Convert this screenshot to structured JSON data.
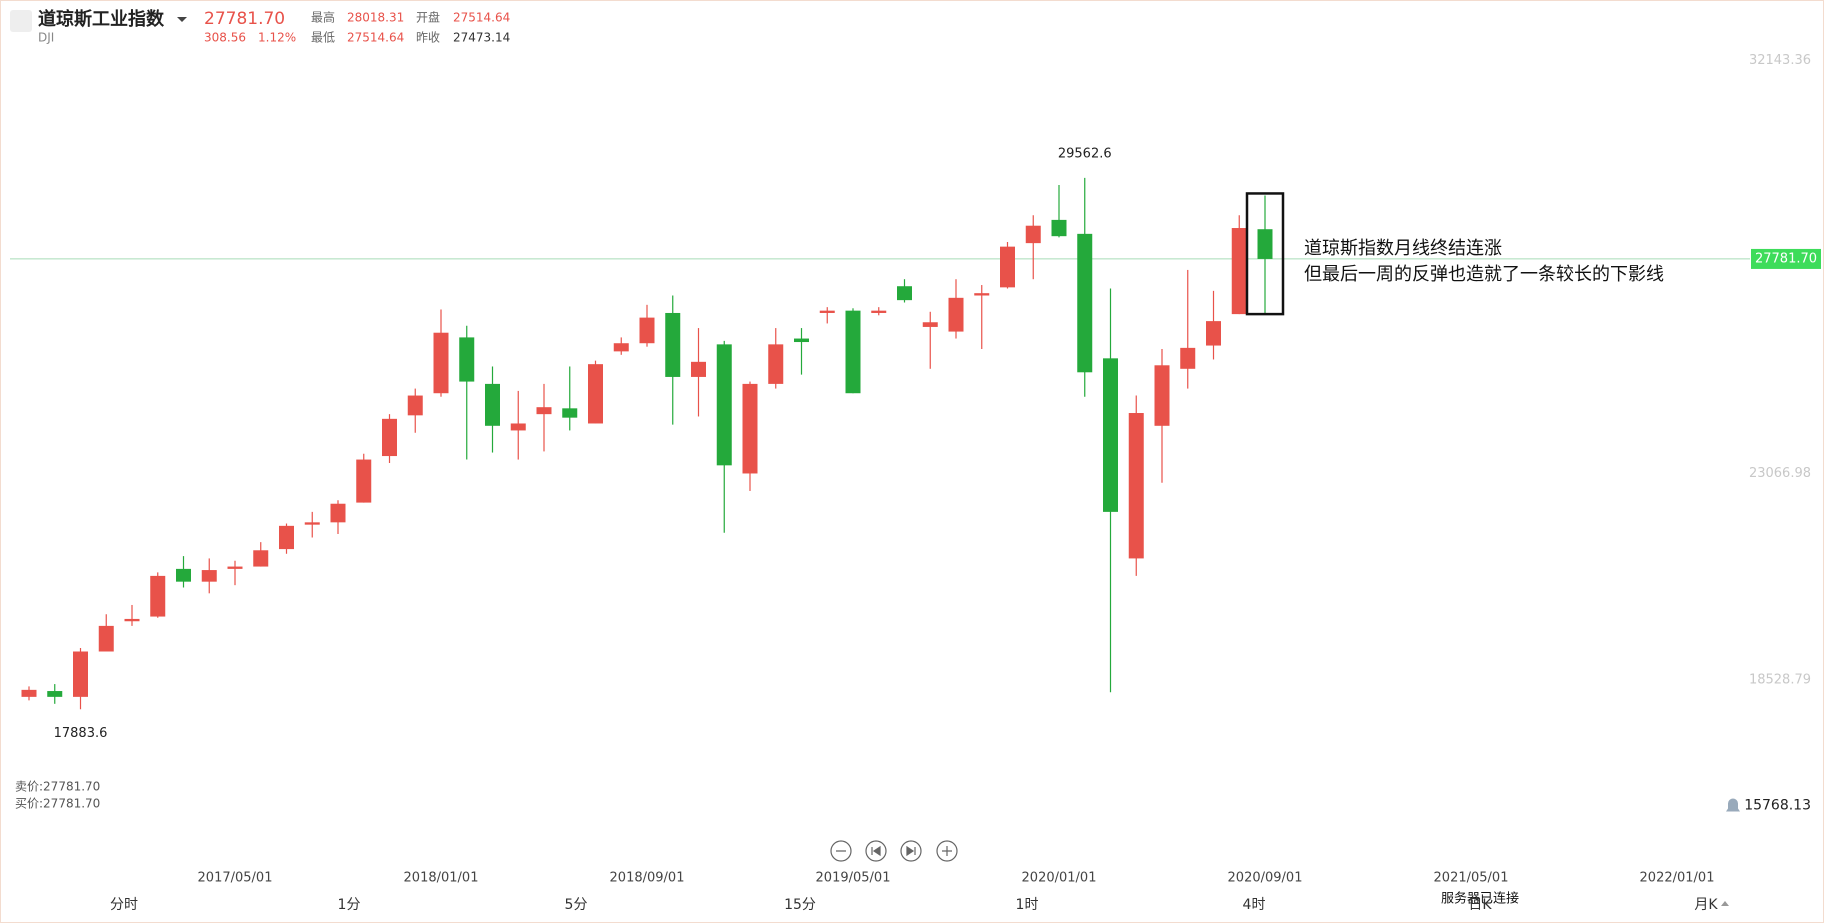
{
  "header": {
    "name": "道琼斯工业指数",
    "code": "DJI",
    "price": "27781.70",
    "change": "308.56",
    "change_pct": "1.12%",
    "high_label": "最高",
    "high": "28018.31",
    "open_label": "开盘",
    "open": "27514.64",
    "low_label": "最低",
    "low": "27514.64",
    "prev_close_label": "昨收",
    "prev_close": "27473.14"
  },
  "quotes": {
    "sell": "卖价:27781.70",
    "buy": "买价:27781.70"
  },
  "periods": [
    "分时",
    "1分",
    "5分",
    "15分",
    "1时",
    "4时",
    "日K",
    "月K"
  ],
  "status": "服务器已连接",
  "chart_data": {
    "type": "candlestick",
    "categories": [
      null,
      null,
      null,
      null,
      null,
      null,
      null,
      null,
      "2017/05/01",
      null,
      null,
      null,
      null,
      null,
      null,
      null,
      "2018/01/01",
      null,
      null,
      null,
      null,
      null,
      null,
      null,
      "2018/09/01",
      null,
      null,
      null,
      null,
      null,
      null,
      null,
      "2019/05/01",
      null,
      null,
      null,
      null,
      null,
      null,
      null,
      "2020/01/01",
      null,
      null,
      null,
      null,
      null,
      null,
      null,
      "2020/09/01",
      null,
      null,
      null,
      null,
      null,
      null,
      null,
      "2021/05/01",
      null,
      null,
      null,
      null,
      null,
      null,
      null,
      "2022/01/01"
    ],
    "open": [
      18156,
      18284,
      18156,
      19153,
      19818,
      19921,
      20969,
      20688,
      20969,
      21020,
      21404,
      21941,
      21992,
      22426,
      23449,
      24344,
      24830,
      26057,
      25035,
      24012,
      24370,
      24498,
      24165,
      25750,
      25929,
      26594,
      25188,
      25904,
      23066,
      25035,
      26032,
      26594,
      26645,
      26594,
      27182,
      26287,
      26185,
      26978,
      27157,
      28129,
      28640,
      28333,
      25597,
      21199,
      24114,
      25367,
      25878,
      26569,
      28435,
      null,
      null,
      null,
      null,
      null,
      null,
      null,
      null,
      null,
      null,
      null,
      null,
      null,
      null,
      null,
      null
    ],
    "high": [
      18386,
      18437,
      19230,
      19972,
      20176,
      20892,
      21250,
      21199,
      21148,
      21557,
      21966,
      22222,
      22478,
      23500,
      24370,
      24932,
      26671,
      26313,
      25418,
      24881,
      25035,
      25418,
      25546,
      26057,
      26773,
      26978,
      26262,
      25981,
      25086,
      26262,
      26262,
      26722,
      26697,
      26722,
      27336,
      26620,
      27336,
      27208,
      28154,
      28742,
      29407,
      29562.6,
      27131,
      24779,
      25802,
      27540,
      27080,
      28742,
      29177,
      null,
      null,
      null,
      null,
      null,
      null,
      null,
      null,
      null,
      null,
      null,
      null,
      null,
      null,
      null,
      null
    ],
    "low": [
      18079,
      18003,
      17883.6,
      19153,
      19716,
      19895,
      20560,
      20432,
      20611,
      21020,
      21301,
      21659,
      21736,
      22426,
      23296,
      23961,
      24753,
      23372,
      23526,
      23372,
      23551,
      24012,
      24165,
      25674,
      25853,
      24140,
      24319,
      21762,
      22682,
      24932,
      25239,
      26364,
      24830,
      26543,
      26824,
      25367,
      26032,
      25802,
      27131,
      27336,
      28256,
      24753,
      18258,
      20815,
      22861,
      24932,
      25572,
      26569,
      26569,
      null,
      null,
      null,
      null,
      null,
      null,
      null,
      null,
      null,
      null,
      null,
      null,
      null,
      null,
      null,
      null
    ],
    "close": [
      18310,
      18156,
      19153,
      19716,
      19869,
      20815,
      20688,
      20943,
      21020,
      21378,
      21915,
      21992,
      22401,
      23372,
      24267,
      24779,
      26160,
      25086,
      24114,
      24165,
      24523,
      24293,
      25469,
      25929,
      26492,
      25188,
      25520,
      23245,
      25035,
      25904,
      25955,
      26645,
      24830,
      26645,
      26876,
      26390,
      26927,
      27029,
      28052,
      28512,
      28282,
      25290,
      22222,
      24395,
      25444,
      25827,
      26415,
      28461,
      27781.7,
      null,
      null,
      null,
      null,
      null,
      null,
      null,
      null,
      null,
      null,
      null,
      null,
      null,
      null,
      null,
      null
    ],
    "up_color": "#e8524a",
    "down_color": "#24a93b",
    "ylim": [
      15768.13,
      32143.36
    ],
    "yticks": [
      15768.13,
      18528.79,
      23066.98,
      32143.36
    ],
    "grid": false,
    "last_price": {
      "value": 27781.7,
      "label": "27781.70"
    },
    "last_price_color": "#3ddc5a",
    "annotation": [
      "道琼斯指数月线终结连涨",
      "但最后一周的反弹也造就了一条较长的下影线"
    ]
  }
}
